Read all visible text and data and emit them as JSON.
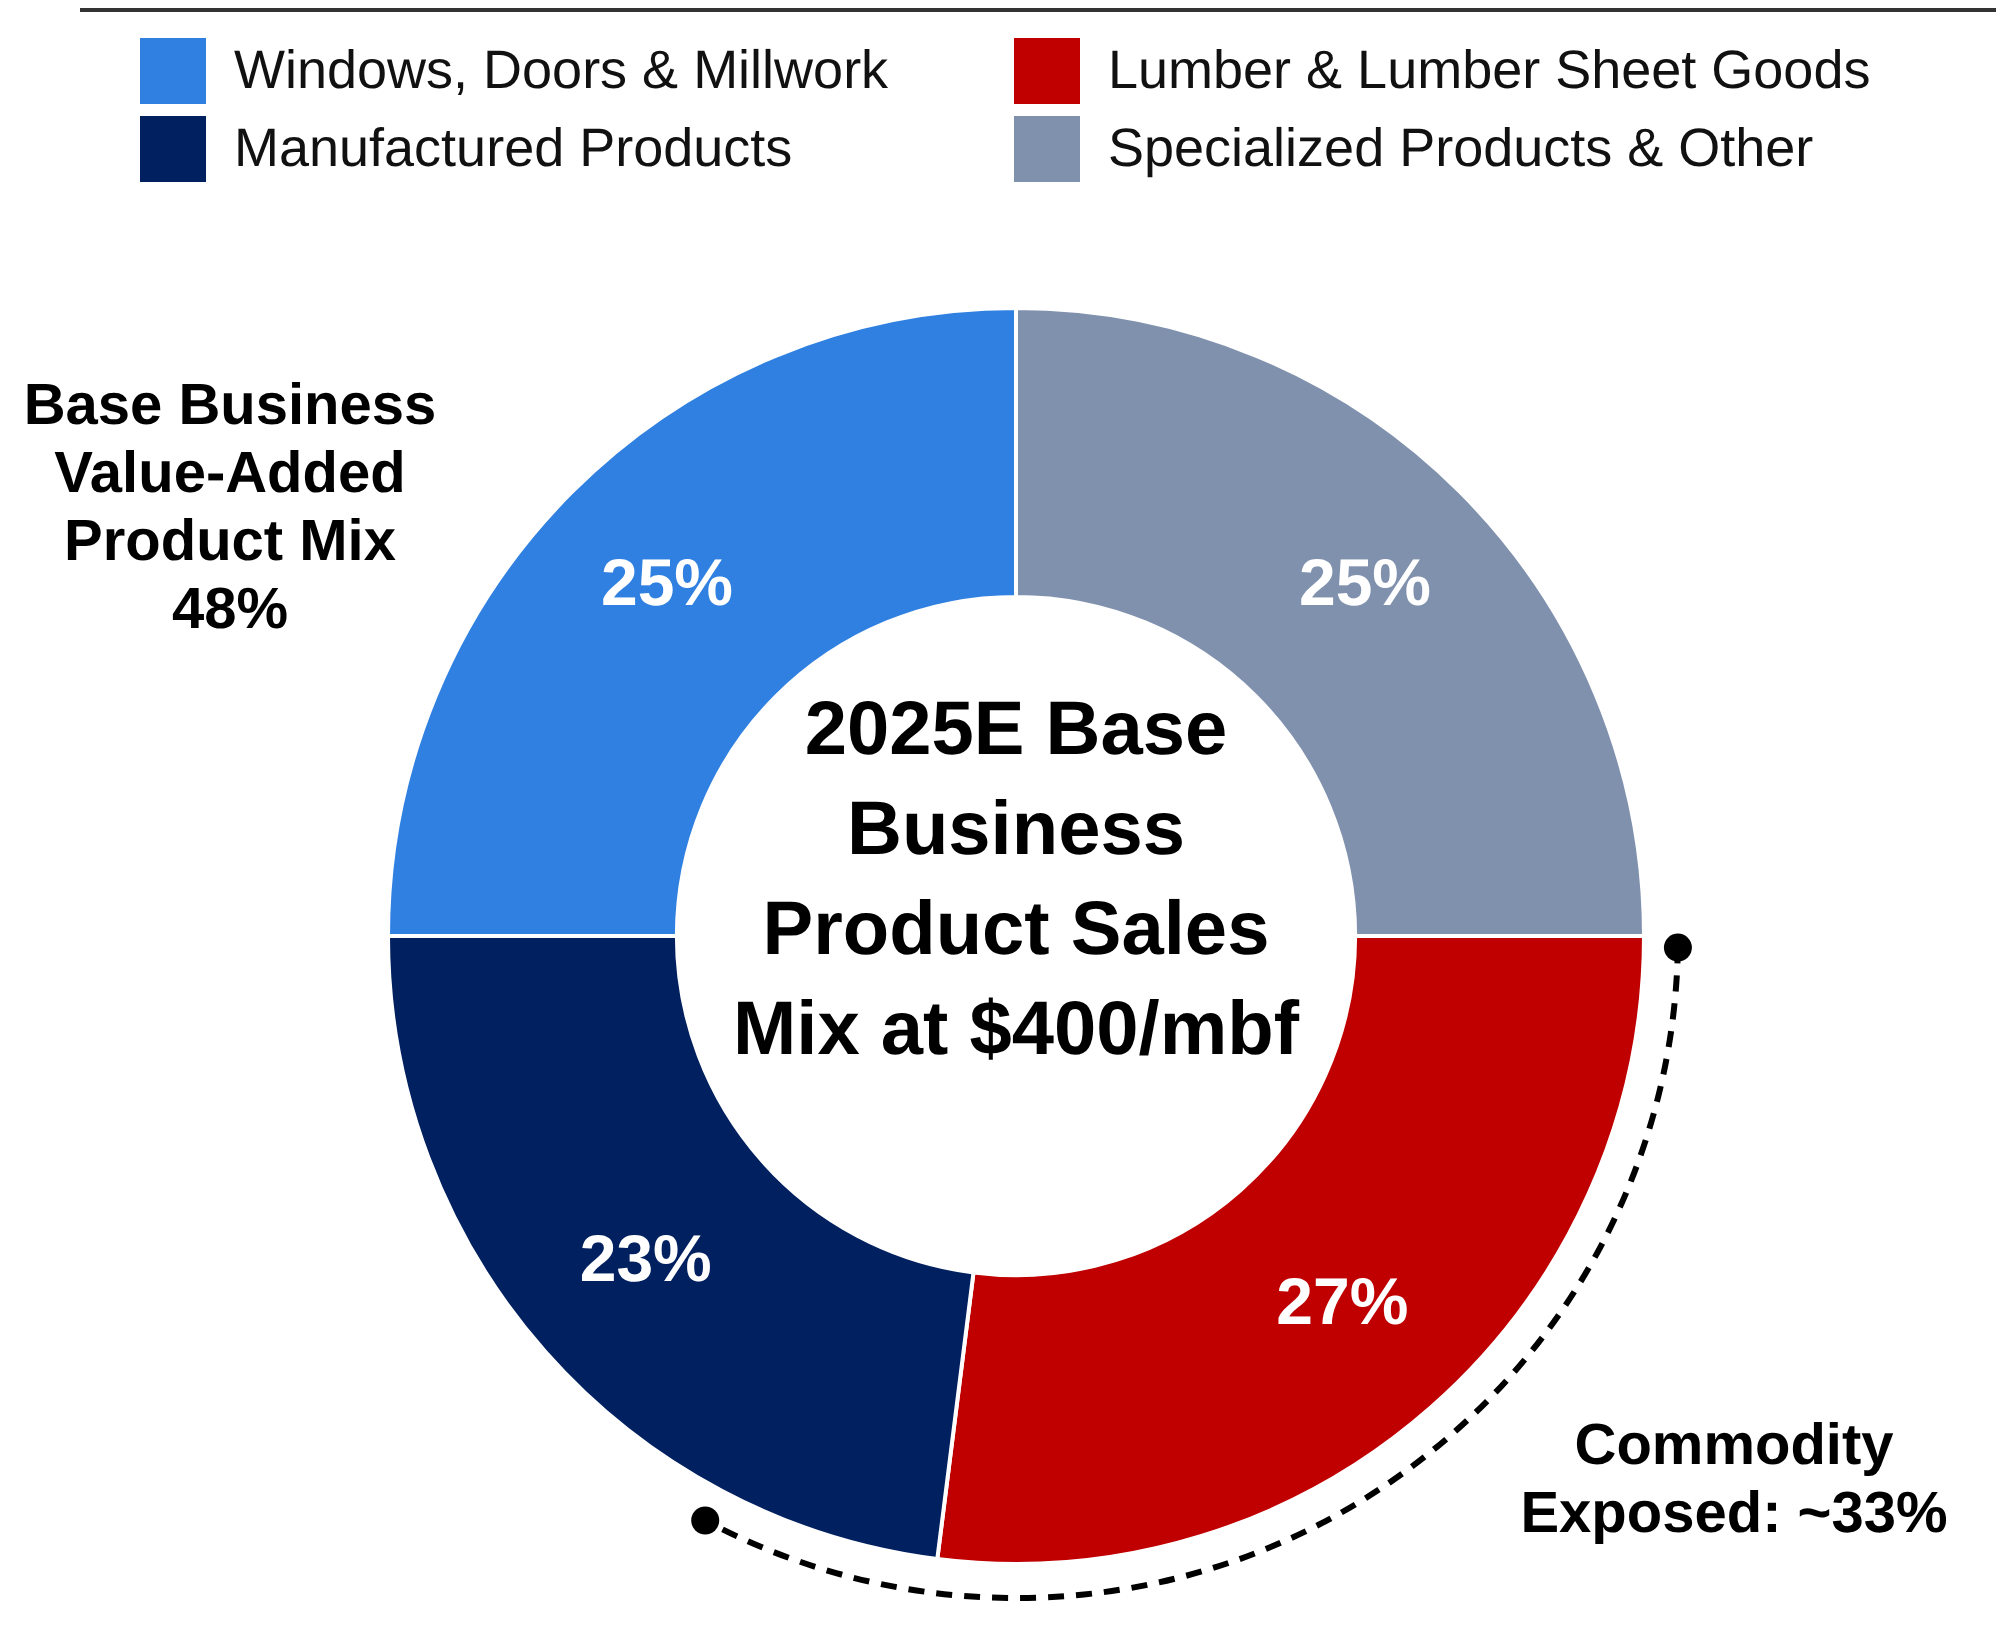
{
  "chart_data": {
    "type": "donut",
    "title": "2025E Base Business Product Sales Mix at $400/mbf",
    "categories": [
      "Specialized Products & Other",
      "Lumber & Lumber Sheet Goods",
      "Manufactured Products",
      "Windows, Doors & Millwork"
    ],
    "values": [
      25,
      27,
      23,
      25
    ],
    "colors": [
      "#8091ae",
      "#c00000",
      "#002060",
      "#2f80e0"
    ],
    "value_labels": [
      "25%",
      "27%",
      "23%",
      "25%"
    ],
    "legend": "top",
    "annotations": [
      "Base Business Value-Added Product Mix 48%",
      "Commodity Exposed: ~33%"
    ]
  }
}
